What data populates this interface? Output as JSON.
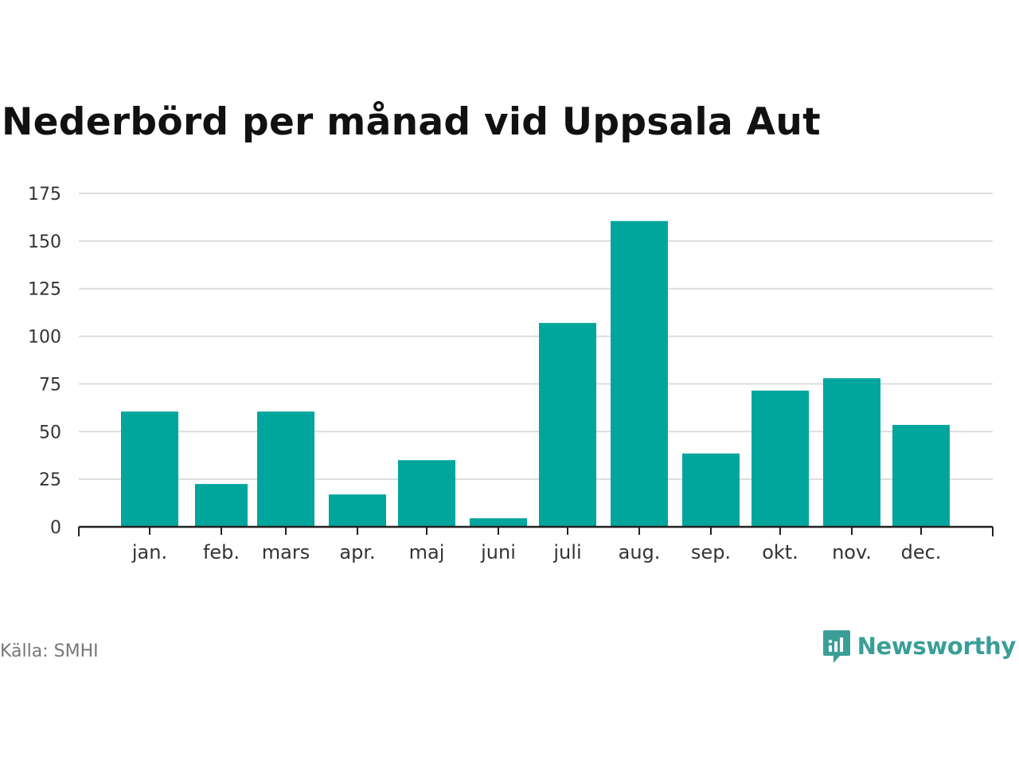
{
  "title": "Nederbörd per månad vid Uppsala Aut",
  "source": "Källa: SMHI",
  "brand": {
    "name": "Newsworthy",
    "icon": "newsworthy-logo-icon",
    "color": "#3a9e98"
  },
  "colors": {
    "bar": "#00a59b",
    "grid": "#dcdcdc",
    "axis": "#222222",
    "tick_label": "#333333"
  },
  "chart_data": {
    "type": "bar",
    "title": "Nederbörd per månad vid Uppsala Aut",
    "xlabel": "",
    "ylabel": "",
    "categories": [
      "jan.",
      "feb.",
      "mars",
      "apr.",
      "maj",
      "juni",
      "juli",
      "aug.",
      "sep.",
      "okt.",
      "nov.",
      "dec."
    ],
    "values": [
      60.5,
      22.5,
      60.5,
      17,
      35,
      4.5,
      107,
      160.5,
      38.5,
      71.5,
      78,
      53.5
    ],
    "ylim": [
      0,
      175
    ],
    "yticks": [
      0,
      25,
      50,
      75,
      100,
      125,
      150,
      175
    ],
    "grid": true,
    "legend": false
  }
}
